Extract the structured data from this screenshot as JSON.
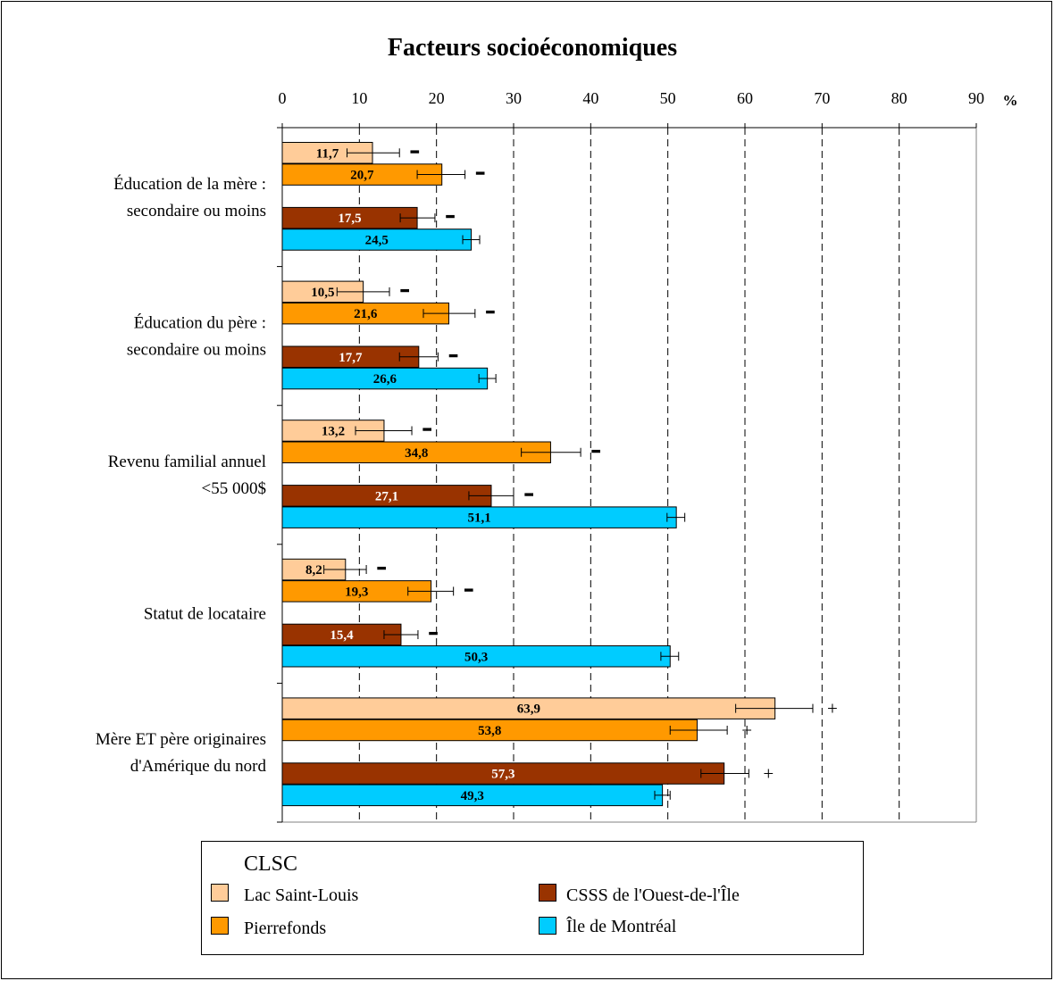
{
  "chart_data": {
    "type": "bar",
    "horizontal": true,
    "title": "Facteurs socioéconomiques",
    "unit_label": "%",
    "xlim": [
      0,
      90
    ],
    "xticks": [
      "0",
      "10",
      "20",
      "30",
      "40",
      "50",
      "60",
      "70",
      "80",
      "90"
    ],
    "grid": true,
    "categories": [
      {
        "lines": [
          "Éducation de la mère :",
          "secondaire ou moins"
        ]
      },
      {
        "lines": [
          "Éducation du père :",
          "secondaire ou moins"
        ]
      },
      {
        "lines": [
          "Revenu familial annuel",
          "<55 000$"
        ]
      },
      {
        "lines": [
          "Statut de locataire"
        ]
      },
      {
        "lines": [
          "Mère ET père originaires",
          "d'Amérique du nord"
        ]
      }
    ],
    "series": [
      {
        "name": "Lac Saint-Louis",
        "color": "#FFCC99",
        "label_color": "#000000",
        "values": [
          11.7,
          10.5,
          13.2,
          8.2,
          63.9
        ],
        "labels": [
          "11,7",
          "10,5",
          "13,2",
          "8,2",
          "63,9"
        ],
        "ci": [
          [
            8.4,
            15.2
          ],
          [
            7.1,
            13.9
          ],
          [
            9.5,
            16.8
          ],
          [
            5.4,
            10.9
          ],
          [
            58.8,
            68.8
          ]
        ],
        "sig": [
          "−",
          "−",
          "−",
          "−",
          "+"
        ]
      },
      {
        "name": "Pierrefonds",
        "color": "#FF9900",
        "label_color": "#000000",
        "values": [
          20.7,
          21.6,
          34.8,
          19.3,
          53.8
        ],
        "labels": [
          "20,7",
          "21,6",
          "34,8",
          "19,3",
          "53,8"
        ],
        "ci": [
          [
            17.5,
            23.7
          ],
          [
            18.3,
            25.0
          ],
          [
            31.0,
            38.7
          ],
          [
            16.3,
            22.2
          ],
          [
            50.3,
            57.7
          ]
        ],
        "sig": [
          "−",
          "−",
          "−",
          "−",
          "+"
        ]
      },
      {
        "name": "CSSS de l'Ouest-de-l'Île",
        "color": "#993300",
        "label_color": "#FFFFFF",
        "values": [
          17.5,
          17.7,
          27.1,
          15.4,
          57.3
        ],
        "labels": [
          "17,5",
          "17,7",
          "27,1",
          "15,4",
          "57,3"
        ],
        "ci": [
          [
            15.3,
            19.8
          ],
          [
            15.2,
            20.2
          ],
          [
            24.2,
            30.0
          ],
          [
            13.2,
            17.6
          ],
          [
            54.3,
            60.5
          ]
        ],
        "sig": [
          "−",
          "−",
          "−",
          "−",
          "+"
        ]
      },
      {
        "name": "Île de Montréal",
        "color": "#00CCFF",
        "label_color": "#000000",
        "values": [
          24.5,
          26.6,
          51.1,
          50.3,
          49.3
        ],
        "labels": [
          "24,5",
          "26,6",
          "51,1",
          "50,3",
          "49,3"
        ],
        "ci": [
          [
            23.4,
            25.6
          ],
          [
            25.5,
            27.7
          ],
          [
            49.9,
            52.2
          ],
          [
            49.1,
            51.4
          ],
          [
            48.3,
            50.3
          ]
        ],
        "sig": [
          null,
          null,
          null,
          null,
          null
        ]
      }
    ],
    "legend": {
      "title": "CLSC",
      "position": "bottom"
    }
  }
}
